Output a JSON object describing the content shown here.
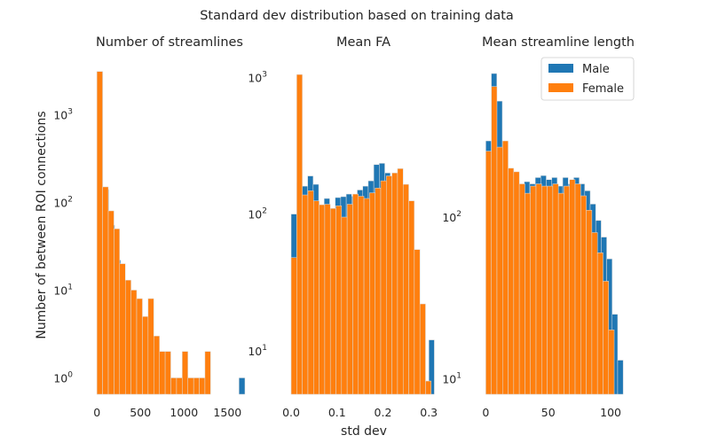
{
  "figure": {
    "suptitle": "Standard dev distribution based on training data",
    "ylabel": "Number of between ROI connections",
    "xlabel": "std dev"
  },
  "colors": {
    "Male": "#1f77b4",
    "Female": "#ff7f0e",
    "bar_edge": "#dddddd"
  },
  "legend": {
    "placement": "top-right",
    "entries": [
      "Male",
      "Female"
    ]
  },
  "chart_data": [
    {
      "type": "bar",
      "title": "Number of streamlines",
      "xlabel": "",
      "ylabel": "Number of between ROI connections",
      "log_y": true,
      "grid": false,
      "xlim": [
        -12,
        1680
      ],
      "ylim": [
        0.65,
        3300
      ],
      "x_ticks": [
        0,
        500,
        1000,
        1500
      ],
      "x_tick_labels": [
        "0",
        "500",
        "1000",
        "1500"
      ],
      "y_ticks": [
        1,
        10,
        100,
        1000
      ],
      "y_tick_labels": [
        "10^0",
        "10^1",
        "10^2",
        "10^3"
      ],
      "series": [
        {
          "name": "Male",
          "bin_edges": [
            0,
            68,
            136,
            204,
            272,
            340,
            408,
            476,
            544,
            612,
            680,
            748,
            816,
            884,
            952,
            1020,
            1088,
            1156,
            1224,
            1292,
            1360,
            1428,
            1496,
            1564,
            1632,
            1700
          ],
          "counts": [
            3100,
            140,
            55,
            22,
            10,
            8,
            4,
            4,
            3,
            2,
            1,
            0,
            1,
            0,
            0,
            0,
            0,
            0,
            0,
            0,
            0,
            0,
            0,
            0,
            1
          ]
        },
        {
          "name": "Female",
          "bin_edges": [
            0,
            65,
            131,
            196,
            261,
            327,
            392,
            457,
            523,
            588,
            653,
            719,
            784,
            849,
            915,
            980,
            1045,
            1111,
            1176,
            1241,
            1306
          ],
          "counts": [
            3100,
            150,
            80,
            50,
            20,
            13,
            10,
            8,
            5,
            8,
            3,
            2,
            2,
            1,
            1,
            2,
            1,
            1,
            1,
            2
          ]
        }
      ]
    },
    {
      "type": "bar",
      "title": "Mean FA",
      "xlabel": "std dev",
      "ylabel": "",
      "log_y": true,
      "grid": false,
      "xlim": [
        -0.002,
        0.317
      ],
      "ylim": [
        4.8,
        1150
      ],
      "x_ticks": [
        0.0,
        0.1,
        0.2,
        0.3
      ],
      "x_tick_labels": [
        "0.0",
        "0.1",
        "0.2",
        "0.3"
      ],
      "y_ticks": [
        10,
        100,
        1000
      ],
      "y_tick_labels": [
        "10^1",
        "10^2",
        "10^3"
      ],
      "series": [
        {
          "name": "Male",
          "bin_edges": [
            0.0,
            0.012,
            0.024,
            0.036,
            0.048,
            0.06,
            0.072,
            0.084,
            0.096,
            0.108,
            0.12,
            0.132,
            0.144,
            0.156,
            0.168,
            0.18,
            0.192,
            0.204,
            0.216,
            0.228,
            0.24,
            0.252,
            0.264,
            0.276,
            0.288,
            0.3,
            0.312
          ],
          "counts": [
            100,
            170,
            160,
            190,
            165,
            113,
            130,
            108,
            132,
            134,
            140,
            135,
            150,
            160,
            175,
            230,
            235,
            200,
            160,
            100,
            55,
            35,
            18,
            12,
            6,
            12
          ]
        },
        {
          "name": "Female",
          "bin_edges": [
            0.0,
            0.0122,
            0.0244,
            0.0366,
            0.0488,
            0.061,
            0.0732,
            0.0854,
            0.0976,
            0.1098,
            0.122,
            0.1342,
            0.1464,
            0.1586,
            0.1708,
            0.183,
            0.1952,
            0.2074,
            0.2196,
            0.2318,
            0.244,
            0.2562,
            0.2684,
            0.2806,
            0.2928,
            0.305,
            0.3172
          ],
          "counts": [
            48,
            1050,
            138,
            148,
            125,
            117,
            118,
            110,
            115,
            95,
            118,
            140,
            135,
            130,
            143,
            155,
            175,
            190,
            200,
            215,
            165,
            125,
            55,
            22,
            6,
            3
          ]
        }
      ]
    },
    {
      "type": "bar",
      "title": "Mean streamline length",
      "xlabel": "",
      "ylabel": "",
      "log_y": true,
      "grid": false,
      "xlim": [
        -1,
        117
      ],
      "ylim": [
        8.0,
        820
      ],
      "x_ticks": [
        0,
        50,
        100
      ],
      "x_tick_labels": [
        "0",
        "50",
        "100"
      ],
      "y_ticks": [
        10,
        100
      ],
      "y_tick_labels": [
        "10^1",
        "10^2"
      ],
      "series": [
        {
          "name": "Male",
          "bin_edges": [
            0.0,
            4.4,
            8.8,
            13.2,
            17.6,
            22.0,
            26.4,
            30.8,
            35.2,
            39.6,
            44.0,
            48.4,
            52.8,
            57.2,
            61.6,
            66.0,
            70.4,
            74.8,
            79.2,
            83.6,
            88.0,
            92.4,
            96.8,
            101.2,
            105.6,
            110.0
          ],
          "counts": [
            295,
            770,
            520,
            200,
            180,
            175,
            160,
            165,
            160,
            175,
            180,
            170,
            175,
            155,
            175,
            160,
            175,
            160,
            145,
            120,
            95,
            75,
            55,
            25,
            13
          ]
        },
        {
          "name": "Female",
          "bin_edges": [
            0.0,
            4.47,
            8.94,
            13.41,
            17.88,
            22.35,
            26.82,
            31.29,
            35.76,
            40.23,
            44.7,
            49.17,
            53.64,
            58.11,
            62.58,
            67.05,
            71.52,
            75.99,
            80.46,
            84.93,
            89.4,
            93.87,
            98.34,
            102.81,
            107.28
          ],
          "counts": [
            255,
            640,
            270,
            295,
            200,
            190,
            160,
            140,
            155,
            160,
            155,
            155,
            160,
            140,
            155,
            170,
            160,
            135,
            110,
            80,
            60,
            40,
            20,
            8
          ]
        }
      ]
    }
  ]
}
